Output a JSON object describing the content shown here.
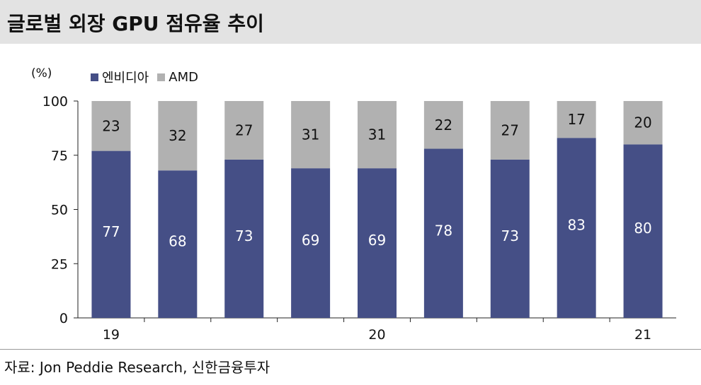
{
  "title": "글로벌 외장 GPU 점유율 추이",
  "unit": "(%)",
  "source": "자료: Jon Peddie Research, 신한금융투자",
  "colors": {
    "nvidia": "#454f86",
    "amd": "#b1b1b1",
    "title_bg": "#e3e3e3"
  },
  "chart_data": {
    "type": "bar",
    "stacked": true,
    "title": "글로벌 외장 GPU 점유율 추이",
    "ylabel": "(%)",
    "ylim": [
      0,
      100
    ],
    "yticks": [
      0,
      25,
      50,
      75,
      100
    ],
    "categories": [
      "19",
      "",
      "",
      "",
      "20",
      "",
      "",
      "",
      "21"
    ],
    "year_labels": [
      "19",
      "20",
      "21"
    ],
    "series": [
      {
        "name": "엔비디아",
        "values": [
          77,
          68,
          73,
          69,
          69,
          78,
          73,
          83,
          80
        ]
      },
      {
        "name": "AMD",
        "values": [
          23,
          32,
          27,
          31,
          31,
          22,
          27,
          17,
          20
        ]
      }
    ],
    "legend": [
      "엔비디아",
      "AMD"
    ],
    "legend_position": "top-left"
  }
}
